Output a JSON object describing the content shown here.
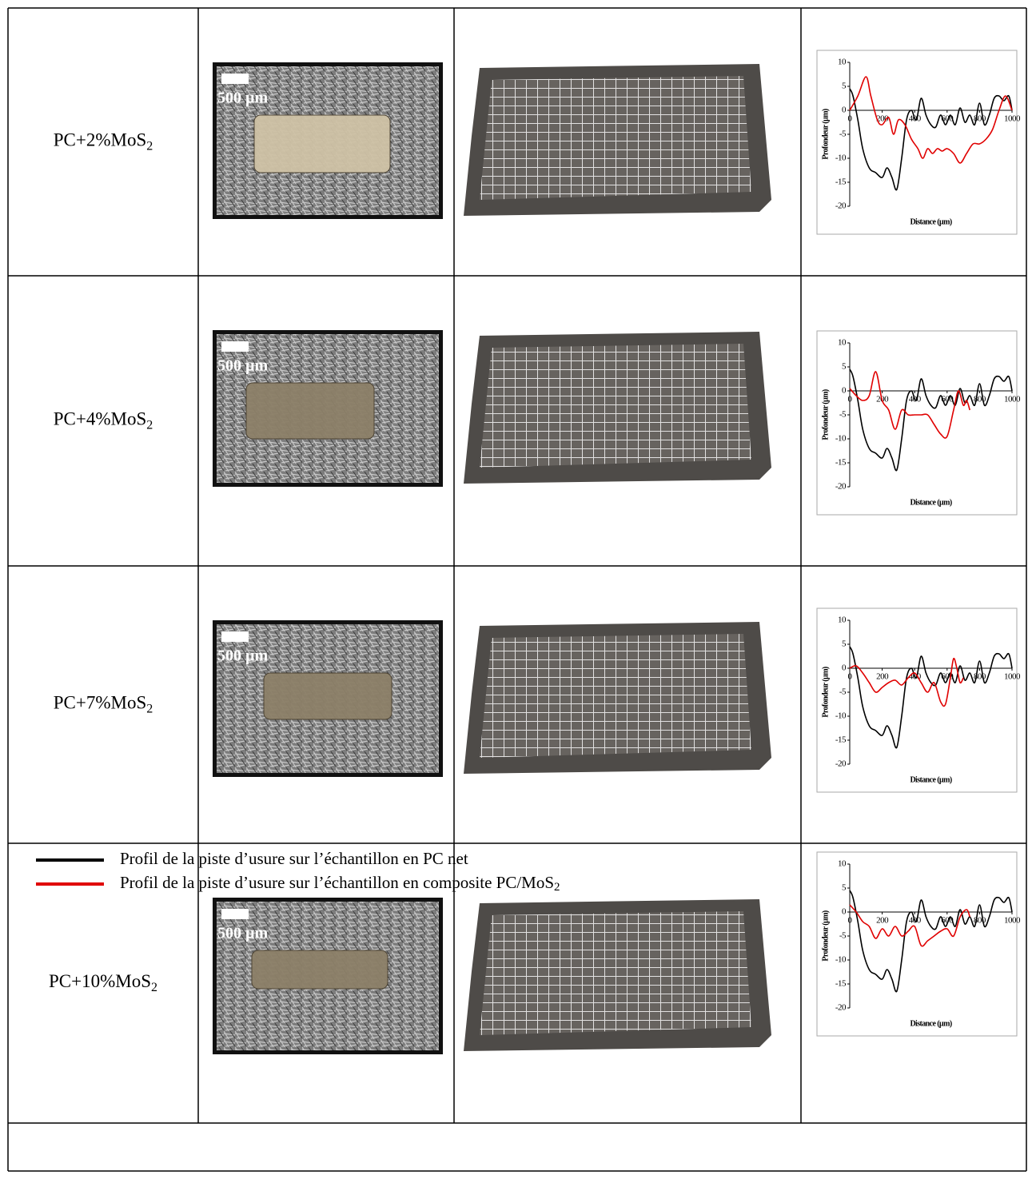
{
  "table": {
    "rows": [
      {
        "label": {
          "text": "PC+2%MoS",
          "subscript": "2"
        },
        "scale_label": "500 µm",
        "chart": {
          "type": "line",
          "ylabel": "Profondeur (µm)",
          "xlabel": "Distance (µm)",
          "xlim": [
            0,
            1000
          ],
          "ylim": [
            -20,
            10
          ],
          "xticks": [
            0,
            200,
            400,
            600,
            800,
            1000
          ],
          "yticks": [
            10,
            5,
            0,
            -5,
            -10,
            -15,
            -20
          ],
          "series": [
            {
              "color": "#000000",
              "x": [
                0,
                20,
                50,
                80,
                120,
                160,
                200,
                230,
                260,
                290,
                320,
                350,
                380,
                410,
                440,
                470,
                500,
                530,
                560,
                590,
                620,
                650,
                680,
                710,
                740,
                770,
                800,
                830,
                860,
                890,
                920,
                950,
                980,
                1000
              ],
              "values": [
                4.5,
                3,
                -2,
                -8,
                -12,
                -13,
                -14,
                -12,
                -14,
                -16.5,
                -10,
                -2,
                0,
                -2,
                2.5,
                -1,
                -3,
                -3.5,
                -1,
                -3,
                -1,
                -3,
                0.5,
                -2.5,
                -1,
                -3,
                1.5,
                -3,
                -1,
                2.5,
                3,
                2,
                3,
                0
              ]
            },
            {
              "color": "#e00000",
              "x": [
                0,
                50,
                100,
                130,
                170,
                200,
                240,
                270,
                300,
                340,
                380,
                420,
                450,
                480,
                510,
                540,
                570,
                600,
                640,
                680,
                720,
                760,
                800,
                840,
                880,
                920,
                960,
                1000
              ],
              "values": [
                0,
                3,
                7,
                3,
                -2,
                -3,
                -1.5,
                -5,
                -2,
                -3,
                -6,
                -8,
                -10,
                -8,
                -9,
                -8,
                -8.5,
                -8,
                -9,
                -11,
                -9,
                -7,
                -7,
                -6,
                -4,
                0,
                3,
                0
              ]
            }
          ]
        }
      },
      {
        "label": {
          "text": "PC+4%MoS",
          "subscript": "2"
        },
        "scale_label": "500 µm",
        "chart": {
          "type": "line",
          "ylabel": "Profondeur (µm)",
          "xlabel": "Distance (µm)",
          "xlim": [
            0,
            1000
          ],
          "ylim": [
            -20,
            10
          ],
          "xticks": [
            0,
            200,
            400,
            600,
            800,
            1000
          ],
          "yticks": [
            10,
            5,
            0,
            -5,
            -10,
            -15,
            -20
          ],
          "series": [
            {
              "color": "#000000",
              "x": [
                0,
                20,
                50,
                80,
                120,
                160,
                200,
                230,
                260,
                290,
                320,
                350,
                380,
                410,
                440,
                470,
                500,
                530,
                560,
                590,
                620,
                650,
                680,
                710,
                740,
                770,
                800,
                830,
                860,
                890,
                920,
                950,
                980,
                1000
              ],
              "values": [
                4.5,
                3,
                -2,
                -8,
                -12,
                -13,
                -14,
                -12,
                -14,
                -16.5,
                -10,
                -2,
                0,
                -2,
                2.5,
                -1,
                -3,
                -3.5,
                -1,
                -3,
                -1,
                -3,
                0.5,
                -2.5,
                -1,
                -3,
                1.5,
                -3,
                -1,
                2.5,
                3,
                2,
                3,
                0
              ]
            },
            {
              "color": "#e00000",
              "x": [
                0,
                40,
                80,
                120,
                160,
                200,
                240,
                280,
                320,
                360,
                400,
                440,
                480,
                520,
                560,
                600,
                640,
                670,
                700,
                720,
                740
              ],
              "values": [
                0.5,
                -1,
                -2,
                -1,
                4,
                -2,
                -4,
                -8,
                -4,
                -5,
                -5,
                -5,
                -5,
                -7,
                -9,
                -9.5,
                -4,
                0,
                -3,
                -2,
                -4
              ]
            }
          ]
        }
      },
      {
        "label": {
          "text": "PC+7%MoS",
          "subscript": "2"
        },
        "scale_label": "500 µm",
        "chart": {
          "type": "line",
          "ylabel": "Profondeur (µm)",
          "xlabel": "Distance (µm)",
          "xlim": [
            0,
            1000
          ],
          "ylim": [
            -20,
            10
          ],
          "xticks": [
            0,
            200,
            400,
            600,
            800,
            1000
          ],
          "yticks": [
            10,
            5,
            0,
            -5,
            -10,
            -15,
            -20
          ],
          "series": [
            {
              "color": "#000000",
              "x": [
                0,
                20,
                50,
                80,
                120,
                160,
                200,
                230,
                260,
                290,
                320,
                350,
                380,
                410,
                440,
                470,
                500,
                530,
                560,
                590,
                620,
                650,
                680,
                710,
                740,
                770,
                800,
                830,
                860,
                890,
                920,
                950,
                980,
                1000
              ],
              "values": [
                4.5,
                3,
                -2,
                -8,
                -12,
                -13,
                -14,
                -12,
                -14,
                -16.5,
                -10,
                -2,
                0,
                -2,
                2.5,
                -1,
                -3,
                -3.5,
                -1,
                -3,
                -1,
                -3,
                0.5,
                -2.5,
                -1,
                -3,
                1.5,
                -3,
                -1,
                2.5,
                3,
                2,
                3,
                0
              ]
            },
            {
              "color": "#e00000",
              "x": [
                0,
                40,
                80,
                120,
                160,
                200,
                240,
                280,
                320,
                360,
                400,
                440,
                480,
                520,
                560,
                590,
                620,
                640,
                660,
                680,
                700
              ],
              "values": [
                0,
                0.5,
                -1,
                -3,
                -5,
                -4,
                -3,
                -2.5,
                -3.5,
                -2,
                -1,
                -3,
                -5,
                -3,
                -7,
                -7.5,
                -2,
                2,
                0,
                -3,
                -2
              ]
            }
          ]
        }
      },
      {
        "label": {
          "text": "PC+10%MoS",
          "subscript": "2"
        },
        "scale_label": "500 µm",
        "chart": {
          "type": "line",
          "ylabel": "Profondeur (µm)",
          "xlabel": "Distance (µm)",
          "xlim": [
            0,
            1000
          ],
          "ylim": [
            -20,
            10
          ],
          "xticks": [
            0,
            200,
            400,
            600,
            800,
            1000
          ],
          "yticks": [
            10,
            5,
            0,
            -5,
            -10,
            -15,
            -20
          ],
          "series": [
            {
              "color": "#000000",
              "x": [
                0,
                20,
                50,
                80,
                120,
                160,
                200,
                230,
                260,
                290,
                320,
                350,
                380,
                410,
                440,
                470,
                500,
                530,
                560,
                590,
                620,
                650,
                680,
                710,
                740,
                770,
                800,
                830,
                860,
                890,
                920,
                950,
                980,
                1000
              ],
              "values": [
                4.5,
                3,
                -2,
                -8,
                -12,
                -13,
                -14,
                -12,
                -14,
                -16.5,
                -10,
                -2,
                0,
                -2,
                2.5,
                -1,
                -3,
                -3.5,
                -1,
                -3,
                -1,
                -3,
                0.5,
                -2.5,
                -1,
                -3,
                1.5,
                -3,
                -1,
                2.5,
                3,
                2,
                3,
                0
              ]
            },
            {
              "color": "#e00000",
              "x": [
                0,
                40,
                80,
                120,
                160,
                200,
                240,
                280,
                320,
                360,
                400,
                440,
                480,
                520,
                560,
                600,
                640,
                680,
                720,
                740
              ],
              "values": [
                1.5,
                0,
                -2,
                -3,
                -5.5,
                -3.5,
                -5,
                -3,
                -5,
                -4,
                -3,
                -7,
                -6,
                -5,
                -4,
                -3.5,
                -5,
                -1,
                0.5,
                -1
              ]
            }
          ]
        }
      }
    ],
    "legend": [
      {
        "color": "#000000",
        "text": "Profil de la piste d’usure sur l’échantillon en PC net"
      },
      {
        "color": "#e00000",
        "text": "Profil de la piste d’usure sur l’échantillon en composite PC/MoS",
        "subscript": "2"
      }
    ]
  }
}
